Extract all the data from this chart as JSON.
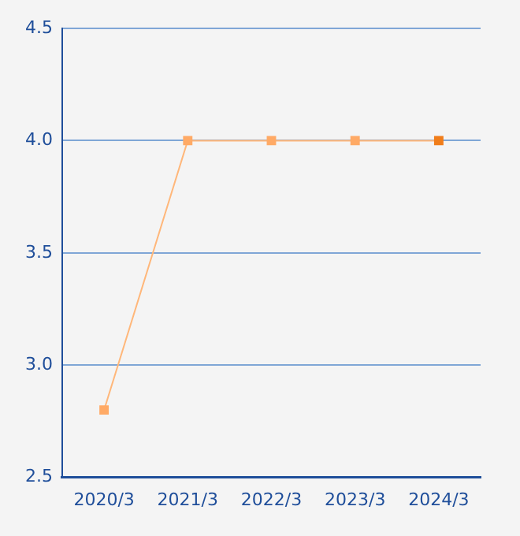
{
  "chart_data": {
    "type": "line",
    "categories": [
      "2020/3",
      "2021/3",
      "2022/3",
      "2023/3",
      "2024/3"
    ],
    "series": [
      {
        "color": "#ffb77a",
        "colors": [
          "#ffaa66",
          "#ffaa66",
          "#ffaa66",
          "#ffaa66",
          "#f07d1a"
        ],
        "values": [
          2.8,
          4.0,
          4.0,
          4.0,
          4.0
        ]
      }
    ],
    "ylim": [
      2.5,
      4.5
    ],
    "yticks": [
      {
        "value": 2.5,
        "label": "2.5"
      },
      {
        "value": 3,
        "label": "3.0"
      },
      {
        "value": 3.5,
        "label": "3.5"
      },
      {
        "value": 4,
        "label": "4.0"
      },
      {
        "value": 4.5,
        "label": "4.5"
      }
    ],
    "grid": "y",
    "marker": "square",
    "legend": false
  }
}
